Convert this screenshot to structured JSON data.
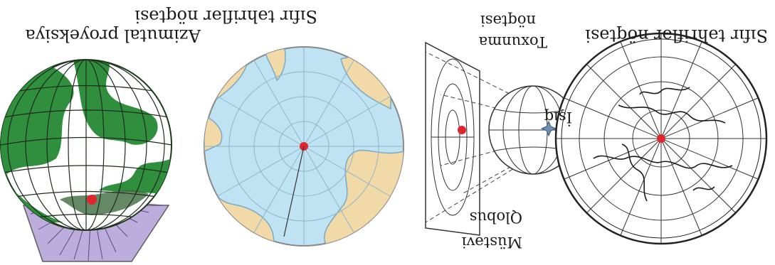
{
  "orientation": "rotated-180",
  "labels": {
    "plane_center_left": "Sıfır təhriflər nöqtəsi",
    "azimuthal": "Azimutal proyeksiya",
    "plane_center_right": "Sıfır təhriflər nöqtəsi",
    "plane": "Müstəvi",
    "globe": "Qlobus",
    "light": "İşıq",
    "contact_line1": "Toxunma",
    "contact_line2": "nöqtəsi"
  },
  "colors": {
    "ocean_blue": "#bfe3f3",
    "land_tan": "#f1d9a8",
    "globe_green": "#2f8f3c",
    "projection_plane": "#b9a9dc",
    "center_point": "#e0262d",
    "grid": "#222222",
    "light_star": "#6e8fb0"
  },
  "icons": [
    "light-star-icon",
    "center-dot-icon"
  ]
}
